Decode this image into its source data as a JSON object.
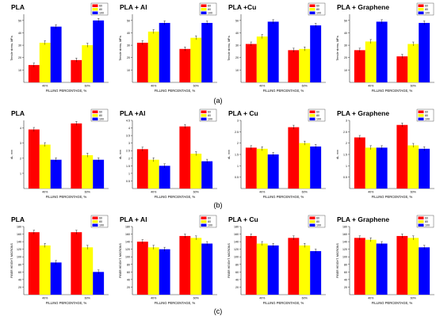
{
  "colors": {
    "s60": "#ff0000",
    "s80": "#ffff00",
    "s100": "#0000ff",
    "axis": "#333333",
    "text": "#000000"
  },
  "row_labels": [
    "(a)",
    "(b)",
    "(c)"
  ],
  "chart_data": [
    {
      "type": "bar",
      "title": "PLA",
      "xlabel": "FILLING PERCENTAGE, %",
      "ylabel": "Tensile stress, MPa",
      "categories": [
        "40%",
        "60%"
      ],
      "ylim": [
        0,
        55
      ],
      "yticks": [
        10,
        20,
        30,
        40,
        50
      ],
      "legend": "top-right",
      "series": [
        {
          "name": "60",
          "values": [
            14,
            18
          ]
        },
        {
          "name": "80",
          "values": [
            32,
            30
          ]
        },
        {
          "name": "100",
          "values": [
            45,
            50
          ]
        }
      ]
    },
    {
      "type": "bar",
      "title": "PLA + Al",
      "xlabel": "FILLING PERCENTAGE, %",
      "ylabel": "Tensile stress, MPa",
      "categories": [
        "40%",
        "60%"
      ],
      "ylim": [
        0,
        55
      ],
      "yticks": [
        10,
        20,
        30,
        40,
        50
      ],
      "legend": "top-right",
      "series": [
        {
          "name": "60",
          "values": [
            32,
            27
          ]
        },
        {
          "name": "80",
          "values": [
            41,
            36
          ]
        },
        {
          "name": "100",
          "values": [
            48,
            48
          ]
        }
      ]
    },
    {
      "type": "bar",
      "title": "PLA +Cu",
      "xlabel": "FILLING PERCENTAGE, %",
      "ylabel": "Tensile stress, MPa",
      "categories": [
        "40%",
        "60%"
      ],
      "ylim": [
        0,
        55
      ],
      "yticks": [
        10,
        20,
        30,
        40,
        50
      ],
      "legend": "top-right",
      "series": [
        {
          "name": "60",
          "values": [
            31,
            26
          ]
        },
        {
          "name": "80",
          "values": [
            37,
            27
          ]
        },
        {
          "name": "100",
          "values": [
            49,
            46
          ]
        }
      ]
    },
    {
      "type": "bar",
      "title": "PLA + Graphene",
      "xlabel": "FILLING PERCENTAGE, %",
      "ylabel": "Tensile stress, MPa",
      "categories": [
        "40%",
        "60%"
      ],
      "ylim": [
        0,
        55
      ],
      "yticks": [
        10,
        20,
        30,
        40,
        50
      ],
      "legend": "top-right",
      "series": [
        {
          "name": "60",
          "values": [
            26,
            21
          ]
        },
        {
          "name": "80",
          "values": [
            33,
            31
          ]
        },
        {
          "name": "100",
          "values": [
            49,
            48
          ]
        }
      ]
    },
    {
      "type": "bar",
      "title": "PLA",
      "xlabel": "FILLING PERCENTAGE, %",
      "ylabel": "dL, mm",
      "categories": [
        "40%",
        "60%"
      ],
      "ylim": [
        0,
        4.5
      ],
      "yticks": [
        1,
        2,
        3,
        4
      ],
      "legend": "top-right",
      "series": [
        {
          "name": "60",
          "values": [
            3.9,
            4.3
          ]
        },
        {
          "name": "80",
          "values": [
            2.9,
            2.2
          ]
        },
        {
          "name": "100",
          "values": [
            1.9,
            1.9
          ]
        }
      ]
    },
    {
      "type": "bar",
      "title": "PLA +Al",
      "xlabel": "FILLING PERCENTAGE, %",
      "ylabel": "dL, mm",
      "categories": [
        "40%",
        "60%"
      ],
      "ylim": [
        0,
        4.5
      ],
      "yticks": [
        0.5,
        1,
        1.5,
        2,
        2.5,
        3,
        3.5,
        4,
        4.5
      ],
      "legend": "top-right",
      "series": [
        {
          "name": "60",
          "values": [
            2.6,
            4.1
          ]
        },
        {
          "name": "80",
          "values": [
            1.9,
            2.3
          ]
        },
        {
          "name": "100",
          "values": [
            1.5,
            1.8
          ]
        }
      ]
    },
    {
      "type": "bar",
      "title": "PLA + Cu",
      "xlabel": "FILLING PERCENTAGE, %",
      "ylabel": "dL, mm",
      "categories": [
        "40%",
        "60%"
      ],
      "ylim": [
        0,
        3
      ],
      "yticks": [
        0.5,
        1,
        1.5,
        2,
        2.5,
        3
      ],
      "legend": "top-right",
      "series": [
        {
          "name": "60",
          "values": [
            1.8,
            2.7
          ]
        },
        {
          "name": "80",
          "values": [
            1.75,
            2.0
          ]
        },
        {
          "name": "100",
          "values": [
            1.5,
            1.85
          ]
        }
      ]
    },
    {
      "type": "bar",
      "title": "PLA + Graphene",
      "xlabel": "FILLING PERCENTAGE, %",
      "ylabel": "dL, mm",
      "categories": [
        "40%",
        "60%"
      ],
      "ylim": [
        0,
        3
      ],
      "yticks": [
        0.5,
        1,
        1.5,
        2,
        2.5,
        3
      ],
      "legend": "top-right",
      "series": [
        {
          "name": "60",
          "values": [
            2.25,
            2.8
          ]
        },
        {
          "name": "80",
          "values": [
            1.8,
            1.9
          ]
        },
        {
          "name": "100",
          "values": [
            1.8,
            1.75
          ]
        }
      ]
    },
    {
      "type": "bar",
      "title": "PLA",
      "xlabel": "FILLING PERCENTAGE, %",
      "ylabel": "FIBER HEIGHT, MICRONS",
      "categories": [
        "40%",
        "60%"
      ],
      "ylim": [
        0,
        180
      ],
      "yticks": [
        20,
        40,
        60,
        80,
        100,
        120,
        140,
        160,
        180
      ],
      "legend": "top-right",
      "series": [
        {
          "name": "60",
          "values": [
            165,
            165
          ]
        },
        {
          "name": "80",
          "values": [
            130,
            125
          ]
        },
        {
          "name": "100",
          "values": [
            85,
            60
          ]
        }
      ]
    },
    {
      "type": "bar",
      "title": "PLA + Al",
      "xlabel": "FILLING PERCENTAGE, %",
      "ylabel": "FIBER HEIGHT, MICRONS",
      "categories": [
        "40%",
        "60%"
      ],
      "ylim": [
        0,
        180
      ],
      "yticks": [
        20,
        40,
        60,
        80,
        100,
        120,
        140,
        160,
        180
      ],
      "legend": "top-right",
      "series": [
        {
          "name": "60",
          "values": [
            140,
            155
          ]
        },
        {
          "name": "80",
          "values": [
            125,
            150
          ]
        },
        {
          "name": "100",
          "values": [
            120,
            135
          ]
        }
      ]
    },
    {
      "type": "bar",
      "title": "PLA + Cu",
      "xlabel": "FILLING PERCENTAGE, %",
      "ylabel": "FIBER HEIGHT, MICRONS",
      "categories": [
        "40%",
        "60%"
      ],
      "ylim": [
        0,
        180
      ],
      "yticks": [
        20,
        40,
        60,
        80,
        100,
        120,
        140,
        160,
        180
      ],
      "legend": "top-right",
      "series": [
        {
          "name": "60",
          "values": [
            155,
            150
          ]
        },
        {
          "name": "80",
          "values": [
            135,
            130
          ]
        },
        {
          "name": "100",
          "values": [
            130,
            115
          ]
        }
      ]
    },
    {
      "type": "bar",
      "title": "PLA + Graphene",
      "xlabel": "FILLING PERCENTAGE, %",
      "ylabel": "FIBER HEIGHT, MICRONS",
      "categories": [
        "40%",
        "60%"
      ],
      "ylim": [
        0,
        180
      ],
      "yticks": [
        20,
        40,
        60,
        80,
        100,
        120,
        140,
        160,
        180
      ],
      "legend": "top-right",
      "series": [
        {
          "name": "60",
          "values": [
            150,
            155
          ]
        },
        {
          "name": "80",
          "values": [
            145,
            150
          ]
        },
        {
          "name": "100",
          "values": [
            135,
            125
          ]
        }
      ]
    }
  ]
}
